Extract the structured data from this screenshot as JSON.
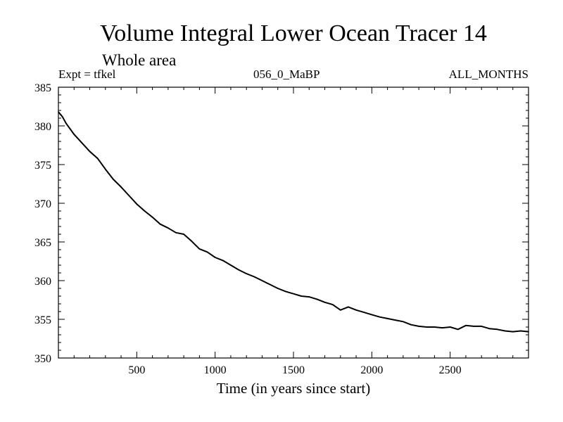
{
  "chart_data": {
    "type": "line",
    "title": "Volume Integral Lower Ocean Tracer 14",
    "subtitle": "Whole area",
    "experiment": "Expt = tfkel",
    "run_label": "056_0_MaBP",
    "months_label": "ALL_MONTHS",
    "xlabel": "Time (in years since start)",
    "ylabel": "",
    "xlim": [
      0,
      3000
    ],
    "ylim": [
      350,
      385
    ],
    "x_ticks": [
      500,
      1000,
      1500,
      2000,
      2500
    ],
    "y_ticks": [
      350,
      355,
      360,
      365,
      370,
      375,
      380,
      385
    ],
    "grid": false,
    "series": [
      {
        "x": [
          0,
          25,
          50,
          75,
          100,
          150,
          200,
          250,
          300,
          350,
          400,
          450,
          500,
          550,
          600,
          650,
          700,
          750,
          800,
          850,
          900,
          950,
          1000,
          1050,
          1100,
          1150,
          1200,
          1250,
          1300,
          1350,
          1400,
          1450,
          1500,
          1550,
          1600,
          1650,
          1700,
          1750,
          1800,
          1850,
          1900,
          1950,
          2000,
          2050,
          2100,
          2150,
          2200,
          2250,
          2300,
          2350,
          2400,
          2450,
          2500,
          2550,
          2600,
          2650,
          2700,
          2750,
          2800,
          2850,
          2900,
          2950,
          3000
        ],
        "y": [
          381.8,
          381.2,
          380.3,
          379.6,
          378.9,
          377.8,
          376.7,
          375.8,
          374.4,
          373.1,
          372.1,
          371.0,
          369.9,
          369.0,
          368.2,
          367.3,
          366.8,
          366.2,
          366.0,
          365.1,
          364.1,
          363.7,
          363.0,
          362.6,
          362.0,
          361.4,
          360.9,
          360.5,
          360.0,
          359.5,
          359.0,
          358.6,
          358.3,
          358.0,
          357.9,
          357.6,
          357.2,
          356.9,
          356.2,
          356.6,
          356.2,
          355.9,
          355.6,
          355.3,
          355.1,
          354.9,
          354.7,
          354.3,
          354.1,
          354.0,
          354.0,
          353.9,
          354.0,
          353.7,
          354.2,
          354.1,
          354.1,
          353.8,
          353.7,
          353.5,
          353.4,
          353.5,
          353.4
        ]
      }
    ]
  }
}
